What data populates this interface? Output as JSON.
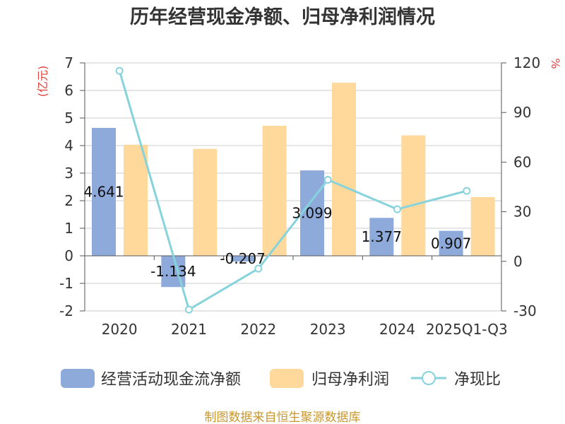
{
  "chart_data": {
    "type": "bar",
    "title": "历年经营现金净额、归母净利润情况",
    "categories": [
      "2020",
      "2021",
      "2022",
      "2023",
      "2024",
      "2025Q1-Q3"
    ],
    "series": [
      {
        "name": "经营活动现金流净额",
        "type": "bar",
        "axis": "left",
        "values": [
          4.641,
          -1.134,
          -0.207,
          3.099,
          1.377,
          0.907
        ],
        "data_labels": [
          "4.641",
          "-1.134",
          "-0.207",
          "3.099",
          "1.377",
          "0.907"
        ],
        "color": "#8eaadb"
      },
      {
        "name": "归母净利润",
        "type": "bar",
        "axis": "left",
        "values": [
          4.03,
          3.88,
          4.72,
          6.28,
          4.37,
          2.13
        ],
        "color": "#ffd89b"
      },
      {
        "name": "净现比",
        "type": "line",
        "axis": "right",
        "values": [
          115.2,
          -29.2,
          -4.4,
          49.3,
          31.5,
          42.6
        ],
        "color": "#86d3dc"
      }
    ],
    "xlabel": "",
    "ylabel": "(亿元)",
    "y2label": "%",
    "ylim": [
      -2,
      7
    ],
    "y2lim": [
      -30,
      120
    ],
    "yticks": [
      -2,
      -1,
      0,
      1,
      2,
      3,
      4,
      5,
      6,
      7
    ],
    "y2ticks": [
      -30,
      0,
      30,
      60,
      90,
      120
    ],
    "grid": true,
    "legend": "bottom"
  },
  "footer": "制图数据来自恒生聚源数据库"
}
